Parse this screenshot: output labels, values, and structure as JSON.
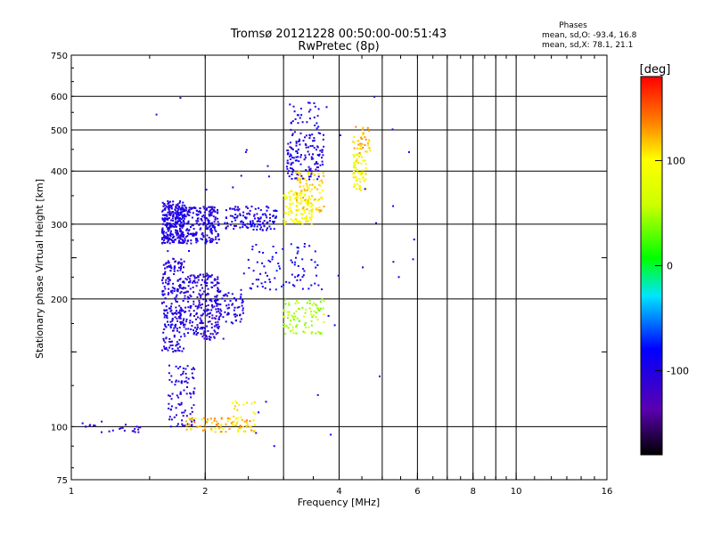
{
  "chart_data": {
    "type": "scatter",
    "title": "Tromsø 20121228 00:50:00-00:51:43",
    "subtitle": "RwPretec (8p)",
    "xlabel": "Frequency [MHz]",
    "ylabel": "Stationary phase Virtual Height [km]",
    "x_scale": "log",
    "y_scale": "log",
    "xlim": [
      1,
      16
    ],
    "ylim": [
      75,
      750
    ],
    "x_ticks": [
      1,
      2,
      4,
      6,
      8,
      10,
      16
    ],
    "x_minor_ticks": [
      3,
      5,
      7,
      9
    ],
    "y_ticks": [
      75,
      100,
      200,
      300,
      400,
      500,
      600,
      750
    ],
    "y_minor_ticks": [
      150,
      250
    ],
    "grid": true,
    "stats": {
      "heading": "Phases",
      "line_o": "mean, sd,O: -93.4, 16.8",
      "line_x": "mean, sd,X:  78.1, 21.1"
    },
    "colorbar": {
      "label": "[deg]",
      "range": [
        -180,
        180
      ],
      "ticks": [
        100,
        0,
        -100
      ]
    },
    "clusters": [
      {
        "x": [
          1.6,
          1.8
        ],
        "y": [
          270,
          340
        ],
        "n": 300,
        "phase": -100
      },
      {
        "x": [
          1.6,
          1.8
        ],
        "y": [
          150,
          250
        ],
        "n": 240,
        "phase": -100
      },
      {
        "x": [
          1.65,
          1.9
        ],
        "y": [
          100,
          140
        ],
        "n": 90,
        "phase": -100
      },
      {
        "x": [
          1.8,
          2.15
        ],
        "y": [
          270,
          330
        ],
        "n": 200,
        "phase": -100
      },
      {
        "x": [
          1.8,
          2.15
        ],
        "y": [
          160,
          230
        ],
        "n": 230,
        "phase": -105
      },
      {
        "x": [
          2.1,
          2.45
        ],
        "y": [
          175,
          210
        ],
        "n": 80,
        "phase": -100
      },
      {
        "x": [
          2.2,
          2.9
        ],
        "y": [
          290,
          330
        ],
        "n": 130,
        "phase": -95
      },
      {
        "x": [
          2.5,
          3.6
        ],
        "y": [
          210,
          270
        ],
        "n": 80,
        "phase": -90
      },
      {
        "x": [
          3.0,
          3.7
        ],
        "y": [
          165,
          200
        ],
        "n": 90,
        "phase": 50
      },
      {
        "x": [
          3.0,
          3.5
        ],
        "y": [
          300,
          360
        ],
        "n": 110,
        "phase": 95
      },
      {
        "x": [
          3.2,
          3.7
        ],
        "y": [
          320,
          400
        ],
        "n": 90,
        "phase": 110
      },
      {
        "x": [
          3.05,
          3.7
        ],
        "y": [
          380,
          500
        ],
        "n": 130,
        "phase": -100
      },
      {
        "x": [
          3.1,
          3.6
        ],
        "y": [
          500,
          580
        ],
        "n": 30,
        "phase": -95
      },
      {
        "x": [
          4.3,
          4.6
        ],
        "y": [
          360,
          440
        ],
        "n": 70,
        "phase": 95
      },
      {
        "x": [
          4.3,
          4.7
        ],
        "y": [
          440,
          510
        ],
        "n": 40,
        "phase": 120
      },
      {
        "x": [
          1.8,
          2.55
        ],
        "y": [
          97,
          105
        ],
        "n": 70,
        "phase": 120
      },
      {
        "x": [
          2.3,
          2.6
        ],
        "y": [
          97,
          115
        ],
        "n": 35,
        "phase": 100
      },
      {
        "x": [
          1.0,
          1.45
        ],
        "y": [
          97,
          103
        ],
        "n": 25,
        "phase": -100
      },
      {
        "x": [
          1.5,
          6.0
        ],
        "y": [
          85,
          650
        ],
        "n": 40,
        "phase": -100
      }
    ]
  }
}
